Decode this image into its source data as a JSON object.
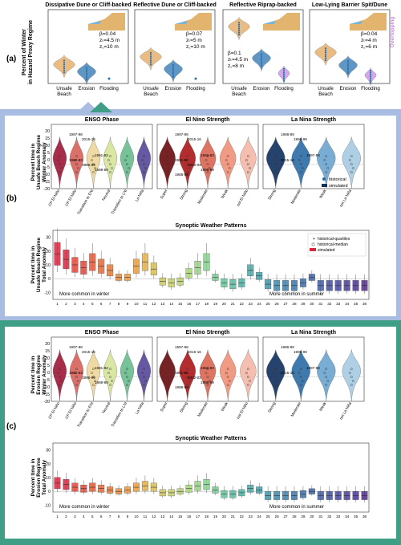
{
  "panel_a": {
    "label": "(a)",
    "ylabel": "Percent of Winter\nin Hazard Proxy Regime",
    "overtopping_label": "Overtopping",
    "colors": {
      "unsafe": "#e3a65a",
      "erosion": "#2b73b0",
      "flooding": "#c38be0"
    },
    "subplots": [
      {
        "title": "Dissipative Dune or Cliff-backed",
        "params": [
          "β=0.04",
          "zₜ=4.5 m",
          "z꜀=10 m"
        ],
        "param_pos": "right",
        "chart_data": {
          "type": "violin",
          "categories": [
            "Unsafe Beach",
            "Erosion",
            "Flooding"
          ],
          "medians": [
            19,
            8,
            0
          ]
        }
      },
      {
        "title": "Reflective Dune or Cliff-backed",
        "params": [
          "β=0.07",
          "zₜ=5 m",
          "z꜀=10 m"
        ],
        "param_pos": "right",
        "chart_data": {
          "type": "violin",
          "categories": [
            "Unsafe Beach",
            "Erosion",
            "Flooding"
          ],
          "medians": [
            31,
            12,
            0
          ]
        }
      },
      {
        "title": "Reflective Riprap-backed",
        "params": [
          "β=0.1",
          "zₜ=4.5 m",
          "z꜀=8 m"
        ],
        "param_pos": "left",
        "chart_data": {
          "type": "violin",
          "categories": [
            "Unsafe Beach",
            "Erosion",
            "Flooding"
          ],
          "medians": [
            78,
            29,
            6
          ]
        }
      },
      {
        "title": "Low-Lying Barrier Spit/Dune",
        "params": [
          "β=0.04",
          "zₜ=4 m",
          "z꜀=6 m"
        ],
        "param_pos": "right",
        "chart_data": {
          "type": "violin",
          "categories": [
            "Unsafe Beach",
            "Erosion",
            "Flooding"
          ],
          "medians": [
            38,
            18,
            3
          ]
        }
      }
    ]
  },
  "panel_b": {
    "label": "(b)",
    "top_ylabel": "Percent time in\nUnsafe Beach Regime\nWinter Anomaly",
    "bottom_ylabel": "Percent time in\nUnsafe Beach Regime\nTotal Anomaly",
    "border_color": "#a9bde2",
    "legend": {
      "historical": "historical",
      "simulated": "simulated"
    },
    "enso": {
      "title": "ENSO Phase",
      "categories": [
        "CP El Niño",
        "CP El Niño",
        "Transition to ENI",
        "Neutral",
        "Transition to LNI",
        "La Niña"
      ],
      "colors": [
        "#a01c3c",
        "#d9635a",
        "#efd79c",
        "#d6e59a",
        "#6cbd91",
        "#5a4a9c"
      ],
      "years": [
        "1997-98",
        "2015-16",
        "1991-92",
        "1982-83",
        "1998-99",
        "1988-89"
      ]
    },
    "elnino": {
      "title": "El Nino Strength",
      "categories": [
        "Super",
        "Strong",
        "Moderate",
        "Weak",
        "not El Niño"
      ],
      "colors": [
        "#6b0f12",
        "#ad1b1d",
        "#db6855",
        "#f0937a",
        "#f5b8a8"
      ],
      "years": [
        "1997-98",
        "2015-16",
        "1982-83",
        "1991-92",
        "2002-03",
        "1998-99",
        "1988-89"
      ]
    },
    "lanina": {
      "title": "La Nina Strength",
      "categories": [
        "Strong",
        "Moderate",
        "Weak",
        "not La Niña"
      ],
      "colors": [
        "#12335f",
        "#2f6fa8",
        "#6fa6cf",
        "#a8cbe3"
      ],
      "years": [
        "1988-89",
        "1998-99",
        "1997-98",
        "2015-16"
      ]
    },
    "synoptic": {
      "title": "Synoptic Weather Patterns",
      "winter_note": "More common in winter",
      "summer_note": "More common in summer",
      "legend": [
        "historical-quartiles",
        "historical-median",
        "simulated"
      ],
      "chart_data": {
        "type": "box",
        "x": [
          1,
          2,
          3,
          4,
          5,
          6,
          7,
          8,
          9,
          10,
          11,
          12,
          13,
          14,
          15,
          16,
          17,
          18,
          19,
          20,
          21,
          22,
          23,
          24,
          25,
          26,
          27,
          28,
          29,
          30,
          31,
          32,
          33,
          34,
          35,
          36
        ],
        "medians": [
          18,
          14,
          10,
          8,
          12,
          9,
          6,
          1,
          1,
          9,
          12,
          7,
          -2,
          -3,
          -2,
          4,
          8,
          12,
          1,
          -3,
          -4,
          -3,
          6,
          2,
          -4,
          -5,
          -5,
          -5,
          -3,
          1,
          -5,
          -5,
          -5,
          -5,
          -5,
          -5
        ]
      }
    }
  },
  "panel_c": {
    "label": "(c)",
    "top_ylabel": "Percent time in\nErosion Regime\nWinter Anomaly",
    "bottom_ylabel": "Percent time in\nErosion Regime\nTotal Anomaly",
    "border_color": "#3e9e86",
    "enso_title": "ENSO Phase",
    "elnino_title": "El Nino Strength",
    "lanina_title": "La Nina Strength",
    "synoptic_title": "Synoptic Weather Patterns",
    "winter_note": "More common in winter",
    "summer_note": "More common in summer",
    "chart_data": {
      "type": "box",
      "x": [
        1,
        2,
        3,
        4,
        5,
        6,
        7,
        8,
        9,
        10,
        11,
        12,
        13,
        14,
        15,
        16,
        17,
        18,
        19,
        20,
        21,
        22,
        23,
        24,
        25,
        26,
        27,
        28,
        29,
        30,
        31,
        32,
        33,
        34,
        35,
        36
      ],
      "medians": [
        6,
        5,
        3,
        2,
        3,
        2,
        1,
        0,
        1,
        3,
        4,
        3,
        -1,
        -1,
        0,
        2,
        4,
        5,
        1,
        -2,
        -2,
        -1,
        2,
        1,
        -3,
        -3,
        -3,
        -3,
        -2,
        0,
        -3,
        -3,
        -3,
        -3,
        -3,
        -3
      ]
    }
  },
  "axis_ticks": {
    "violin_y": [
      20,
      15,
      10,
      5,
      0,
      -5,
      -10,
      -15,
      -20
    ],
    "box_y": [
      30,
      20,
      10,
      0,
      -10
    ]
  }
}
